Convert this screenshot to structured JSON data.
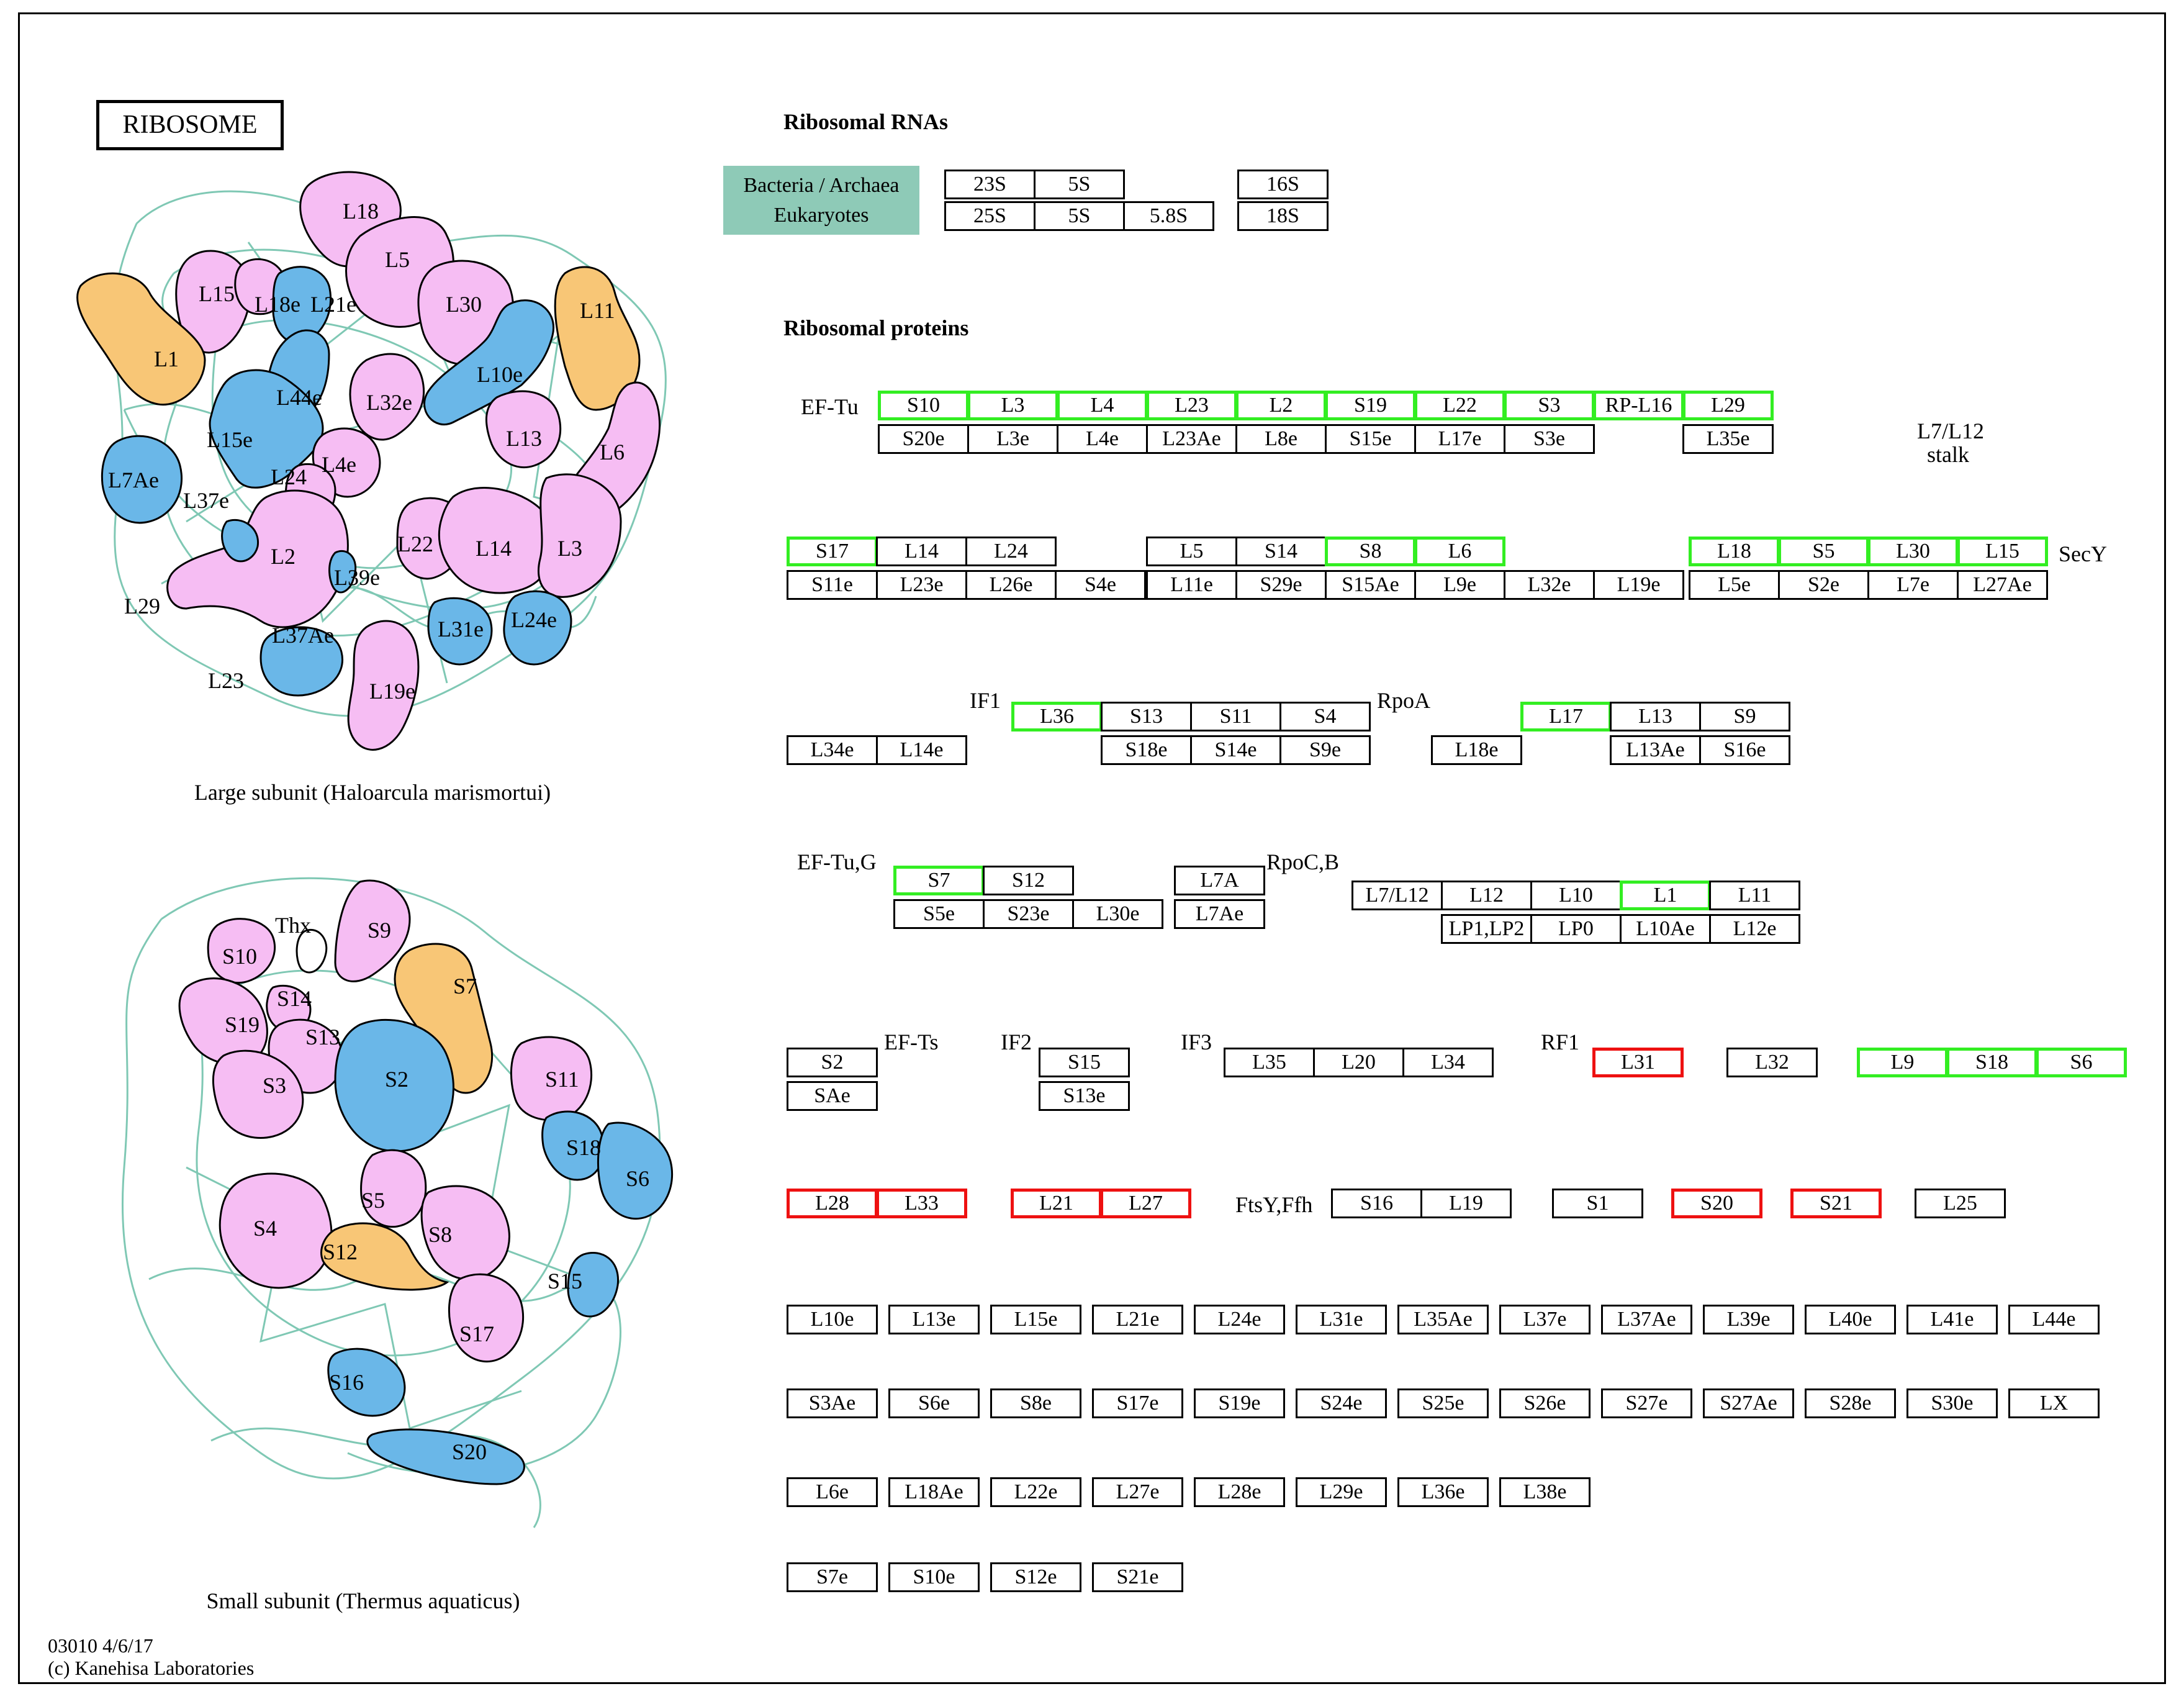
{
  "title": "RIBOSOME",
  "colors": {
    "pink": "#f6bdf3",
    "blue": "#6ab7e8",
    "orange": "#f8c676",
    "teal": "#8ecab7",
    "green_border": "#33ee22",
    "red_border": "#ee1111"
  },
  "large_subunit": {
    "caption": "Large subunit (Haloarcula marismortui)",
    "labels": {
      "L18": "L18",
      "L5": "L5",
      "L15": "L15",
      "L18e": "L18e",
      "L21e": "L21e",
      "L30": "L30",
      "L11": "L11",
      "L1": "L1",
      "L10e": "L10e",
      "L44e": "L44e",
      "L32e": "L32e",
      "L15e": "L15e",
      "L13": "L13",
      "L6": "L6",
      "L4e": "L4e",
      "L7Ae": "L7Ae",
      "L24": "L24",
      "L37e": "L37e",
      "L2": "L2",
      "L22": "L22",
      "L14": "L14",
      "L3": "L3",
      "L39e": "L39e",
      "L29": "L29",
      "L31e": "L31e",
      "L24e": "L24e",
      "L37Ae": "L37Ae",
      "L23": "L23",
      "L19e": "L19e"
    }
  },
  "small_subunit": {
    "caption": "Small subunit (Thermus aquaticus)",
    "labels": {
      "Thx": "Thx",
      "S9": "S9",
      "S10": "S10",
      "S7": "S7",
      "S14": "S14",
      "S19": "S19",
      "S13": "S13",
      "S3": "S3",
      "S2": "S2",
      "S11": "S11",
      "S18": "S18",
      "S6": "S6",
      "S5": "S5",
      "S4": "S4",
      "S8": "S8",
      "S12": "S12",
      "S15": "S15",
      "S17": "S17",
      "S16": "S16",
      "S20": "S20"
    }
  },
  "rrna": {
    "heading": "Ribosomal RNAs",
    "legend_line1": "Bacteria / Archaea",
    "legend_line2": "Eukaryotes",
    "cells": [
      {
        "label": "23S",
        "status": "normal"
      },
      {
        "label": "5S",
        "status": "normal"
      },
      {
        "label": "16S",
        "status": "normal"
      },
      {
        "label": "25S",
        "status": "normal"
      },
      {
        "label": "5S",
        "status": "normal"
      },
      {
        "label": "5.8S",
        "status": "normal"
      },
      {
        "label": "18S",
        "status": "normal"
      }
    ]
  },
  "proteins_heading": "Ribosomal proteins",
  "side_labels": [
    "EF-Tu",
    "L7/L12",
    "stalk",
    "SecY",
    "IF1",
    "RpoA",
    "EF-Tu,G",
    "RpoC,B",
    "EF-Ts",
    "IF2",
    "IF3",
    "RF1",
    "FtsY,Ffh"
  ],
  "protein_cells": [
    {
      "label": "S10",
      "status": "green"
    },
    {
      "label": "L3",
      "status": "green"
    },
    {
      "label": "L4",
      "status": "green"
    },
    {
      "label": "L23",
      "status": "green"
    },
    {
      "label": "L2",
      "status": "green"
    },
    {
      "label": "S19",
      "status": "green"
    },
    {
      "label": "L22",
      "status": "green"
    },
    {
      "label": "S3",
      "status": "green"
    },
    {
      "label": "RP-L16",
      "status": "green"
    },
    {
      "label": "L29",
      "status": "green"
    },
    {
      "label": "S20e",
      "status": "normal"
    },
    {
      "label": "L3e",
      "status": "normal"
    },
    {
      "label": "L4e",
      "status": "normal"
    },
    {
      "label": "L23Ae",
      "status": "normal"
    },
    {
      "label": "L8e",
      "status": "normal"
    },
    {
      "label": "S15e",
      "status": "normal"
    },
    {
      "label": "L17e",
      "status": "normal"
    },
    {
      "label": "S3e",
      "status": "normal"
    },
    {
      "label": "L35e",
      "status": "normal"
    },
    {
      "label": "S17",
      "status": "green"
    },
    {
      "label": "L14",
      "status": "normal"
    },
    {
      "label": "L24",
      "status": "normal"
    },
    {
      "label": "L5",
      "status": "normal"
    },
    {
      "label": "S14",
      "status": "normal"
    },
    {
      "label": "S8",
      "status": "green"
    },
    {
      "label": "L6",
      "status": "green"
    },
    {
      "label": "L18",
      "status": "green"
    },
    {
      "label": "S5",
      "status": "green"
    },
    {
      "label": "L30",
      "status": "green"
    },
    {
      "label": "L15",
      "status": "green"
    },
    {
      "label": "S11e",
      "status": "normal"
    },
    {
      "label": "L23e",
      "status": "normal"
    },
    {
      "label": "L26e",
      "status": "normal"
    },
    {
      "label": "S4e",
      "status": "normal"
    },
    {
      "label": "L11e",
      "status": "normal"
    },
    {
      "label": "S29e",
      "status": "normal"
    },
    {
      "label": "S15Ae",
      "status": "normal"
    },
    {
      "label": "L9e",
      "status": "normal"
    },
    {
      "label": "L32e",
      "status": "normal"
    },
    {
      "label": "L19e",
      "status": "normal"
    },
    {
      "label": "L5e",
      "status": "normal"
    },
    {
      "label": "S2e",
      "status": "normal"
    },
    {
      "label": "L7e",
      "status": "normal"
    },
    {
      "label": "L27Ae",
      "status": "normal"
    },
    {
      "label": "L36",
      "status": "green"
    },
    {
      "label": "S13",
      "status": "normal"
    },
    {
      "label": "S11",
      "status": "normal"
    },
    {
      "label": "S4",
      "status": "normal"
    },
    {
      "label": "L17",
      "status": "green"
    },
    {
      "label": "L13",
      "status": "normal"
    },
    {
      "label": "S9",
      "status": "normal"
    },
    {
      "label": "L34e",
      "status": "normal"
    },
    {
      "label": "L14e",
      "status": "normal"
    },
    {
      "label": "S18e",
      "status": "normal"
    },
    {
      "label": "S14e",
      "status": "normal"
    },
    {
      "label": "S9e",
      "status": "normal"
    },
    {
      "label": "L18e",
      "status": "normal"
    },
    {
      "label": "L13Ae",
      "status": "normal"
    },
    {
      "label": "S16e",
      "status": "normal"
    },
    {
      "label": "S7",
      "status": "green"
    },
    {
      "label": "S12",
      "status": "normal"
    },
    {
      "label": "L7A",
      "status": "normal"
    },
    {
      "label": "L7/L12",
      "status": "normal"
    },
    {
      "label": "L12",
      "status": "normal"
    },
    {
      "label": "L10",
      "status": "normal"
    },
    {
      "label": "L1",
      "status": "green"
    },
    {
      "label": "L11",
      "status": "normal"
    },
    {
      "label": "S5e",
      "status": "normal"
    },
    {
      "label": "S23e",
      "status": "normal"
    },
    {
      "label": "L30e",
      "status": "normal"
    },
    {
      "label": "L7Ae",
      "status": "normal"
    },
    {
      "label": "LP1,LP2",
      "status": "normal"
    },
    {
      "label": "LP0",
      "status": "normal"
    },
    {
      "label": "L10Ae",
      "status": "normal"
    },
    {
      "label": "L12e",
      "status": "normal"
    },
    {
      "label": "S2",
      "status": "normal"
    },
    {
      "label": "S15",
      "status": "normal"
    },
    {
      "label": "L35",
      "status": "normal"
    },
    {
      "label": "L20",
      "status": "normal"
    },
    {
      "label": "L34",
      "status": "normal"
    },
    {
      "label": "L31",
      "status": "red"
    },
    {
      "label": "L32",
      "status": "normal"
    },
    {
      "label": "L9",
      "status": "green"
    },
    {
      "label": "S18",
      "status": "green"
    },
    {
      "label": "S6",
      "status": "green"
    },
    {
      "label": "SAe",
      "status": "normal"
    },
    {
      "label": "S13e",
      "status": "normal"
    },
    {
      "label": "L28",
      "status": "red"
    },
    {
      "label": "L33",
      "status": "red"
    },
    {
      "label": "L21",
      "status": "red"
    },
    {
      "label": "L27",
      "status": "red"
    },
    {
      "label": "S16",
      "status": "normal"
    },
    {
      "label": "L19",
      "status": "normal"
    },
    {
      "label": "S1",
      "status": "normal"
    },
    {
      "label": "S20",
      "status": "red"
    },
    {
      "label": "S21",
      "status": "red"
    },
    {
      "label": "L25",
      "status": "normal"
    },
    {
      "label": "L10e",
      "status": "normal"
    },
    {
      "label": "L13e",
      "status": "normal"
    },
    {
      "label": "L15e",
      "status": "normal"
    },
    {
      "label": "L21e",
      "status": "normal"
    },
    {
      "label": "L24e",
      "status": "normal"
    },
    {
      "label": "L31e",
      "status": "normal"
    },
    {
      "label": "L35Ae",
      "status": "normal"
    },
    {
      "label": "L37e",
      "status": "normal"
    },
    {
      "label": "L37Ae",
      "status": "normal"
    },
    {
      "label": "L39e",
      "status": "normal"
    },
    {
      "label": "L40e",
      "status": "normal"
    },
    {
      "label": "L41e",
      "status": "normal"
    },
    {
      "label": "L44e",
      "status": "normal"
    },
    {
      "label": "S3Ae",
      "status": "normal"
    },
    {
      "label": "S6e",
      "status": "normal"
    },
    {
      "label": "S8e",
      "status": "normal"
    },
    {
      "label": "S17e",
      "status": "normal"
    },
    {
      "label": "S19e",
      "status": "normal"
    },
    {
      "label": "S24e",
      "status": "normal"
    },
    {
      "label": "S25e",
      "status": "normal"
    },
    {
      "label": "S26e",
      "status": "normal"
    },
    {
      "label": "S27e",
      "status": "normal"
    },
    {
      "label": "S27Ae",
      "status": "normal"
    },
    {
      "label": "S28e",
      "status": "normal"
    },
    {
      "label": "S30e",
      "status": "normal"
    },
    {
      "label": "LX",
      "status": "normal"
    },
    {
      "label": "L6e",
      "status": "normal"
    },
    {
      "label": "L18Ae",
      "status": "normal"
    },
    {
      "label": "L22e",
      "status": "normal"
    },
    {
      "label": "L27e",
      "status": "normal"
    },
    {
      "label": "L28e",
      "status": "normal"
    },
    {
      "label": "L29e",
      "status": "normal"
    },
    {
      "label": "L36e",
      "status": "normal"
    },
    {
      "label": "L38e",
      "status": "normal"
    },
    {
      "label": "S7e",
      "status": "normal"
    },
    {
      "label": "S10e",
      "status": "normal"
    },
    {
      "label": "S12e",
      "status": "normal"
    },
    {
      "label": "S21e",
      "status": "normal"
    }
  ],
  "footer": {
    "code": "03010 4/6/17",
    "copyright": "(c) Kanehisa Laboratories"
  }
}
